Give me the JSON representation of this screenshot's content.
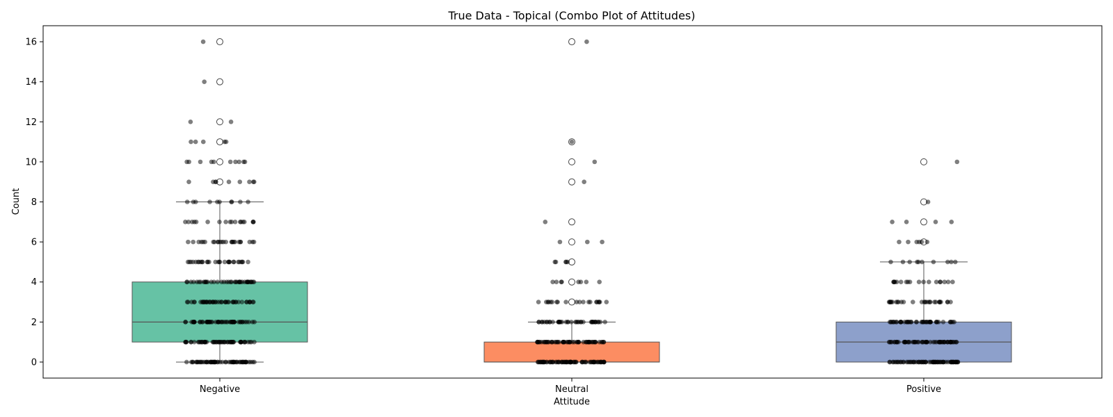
{
  "chart_data": {
    "type": "box",
    "title": "True Data - Topical (Combo Plot of Attitudes)",
    "xlabel": "Attitude",
    "ylabel": "Count",
    "ylim": [
      -0.8,
      16.8
    ],
    "yticks": [
      0,
      2,
      4,
      6,
      8,
      10,
      12,
      14,
      16
    ],
    "grid": false,
    "categories": [
      "Negative",
      "Neutral",
      "Positive"
    ],
    "boxes": [
      {
        "category": "Negative",
        "color": "#66c2a5",
        "q1": 1,
        "median": 2,
        "q3": 4,
        "whisker_low": 0,
        "whisker_high": 8,
        "outliers": [
          9,
          10,
          11,
          12,
          14,
          16
        ]
      },
      {
        "category": "Neutral",
        "color": "#fc8d62",
        "q1": 0,
        "median": 0,
        "q3": 1,
        "whisker_low": 0,
        "whisker_high": 2,
        "outliers": [
          3,
          4,
          5,
          6,
          7,
          9,
          10,
          11,
          16
        ]
      },
      {
        "category": "Positive",
        "color": "#8da0cb",
        "q1": 0,
        "median": 1,
        "q3": 2,
        "whisker_low": 0,
        "whisker_high": 5,
        "outliers": [
          6,
          7,
          8,
          10
        ]
      }
    ],
    "strip_points": [
      {
        "category": "Negative",
        "counts": [
          {
            "y": 0,
            "n": 60
          },
          {
            "y": 1,
            "n": 55
          },
          {
            "y": 2,
            "n": 55
          },
          {
            "y": 3,
            "n": 45
          },
          {
            "y": 4,
            "n": 40
          },
          {
            "y": 5,
            "n": 30
          },
          {
            "y": 6,
            "n": 25
          },
          {
            "y": 7,
            "n": 18
          },
          {
            "y": 8,
            "n": 10
          },
          {
            "y": 9,
            "n": 9
          },
          {
            "y": 10,
            "n": 10
          },
          {
            "y": 11,
            "n": 5
          },
          {
            "y": 12,
            "n": 2
          },
          {
            "y": 14,
            "n": 1
          },
          {
            "y": 16,
            "n": 1
          }
        ]
      },
      {
        "category": "Neutral",
        "counts": [
          {
            "y": 0,
            "n": 75
          },
          {
            "y": 1,
            "n": 60
          },
          {
            "y": 2,
            "n": 40
          },
          {
            "y": 3,
            "n": 20
          },
          {
            "y": 4,
            "n": 8
          },
          {
            "y": 5,
            "n": 5
          },
          {
            "y": 6,
            "n": 3
          },
          {
            "y": 7,
            "n": 1
          },
          {
            "y": 9,
            "n": 1
          },
          {
            "y": 10,
            "n": 1
          },
          {
            "y": 11,
            "n": 1
          },
          {
            "y": 16,
            "n": 1
          }
        ]
      },
      {
        "category": "Positive",
        "counts": [
          {
            "y": 0,
            "n": 70
          },
          {
            "y": 1,
            "n": 60
          },
          {
            "y": 2,
            "n": 45
          },
          {
            "y": 3,
            "n": 28
          },
          {
            "y": 4,
            "n": 18
          },
          {
            "y": 5,
            "n": 10
          },
          {
            "y": 6,
            "n": 6
          },
          {
            "y": 7,
            "n": 4
          },
          {
            "y": 8,
            "n": 1
          },
          {
            "y": 10,
            "n": 1
          }
        ]
      }
    ]
  }
}
